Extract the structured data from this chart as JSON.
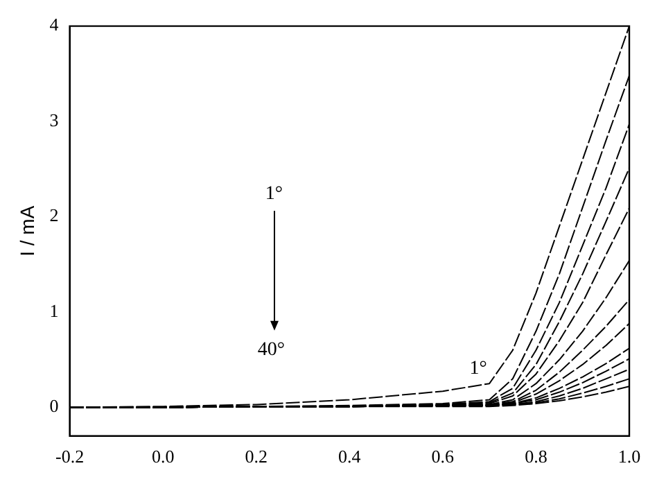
{
  "chart_data": {
    "type": "line",
    "ylabel": "I / mA",
    "x": [
      -0.2,
      0,
      0.2,
      0.4,
      0.6,
      0.7,
      0.75,
      0.8,
      0.85,
      0.9,
      0.95,
      1.0
    ],
    "series": [
      {
        "color": "#000000",
        "values": [
          0,
          0.01,
          0.03,
          0.08,
          0.17,
          0.25,
          0.6,
          1.2,
          1.9,
          2.6,
          3.3,
          4.0
        ]
      },
      {
        "color": "#000000",
        "values": [
          0,
          0,
          0.01,
          0.02,
          0.04,
          0.08,
          0.3,
          0.8,
          1.4,
          2.1,
          2.8,
          3.48
        ]
      },
      {
        "color": "#000000",
        "values": [
          0,
          0,
          0.01,
          0.01,
          0.03,
          0.06,
          0.2,
          0.6,
          1.1,
          1.7,
          2.3,
          2.97
        ]
      },
      {
        "color": "#000000",
        "values": [
          0,
          0,
          0.01,
          0.01,
          0.03,
          0.05,
          0.15,
          0.45,
          0.9,
          1.4,
          1.95,
          2.51
        ]
      },
      {
        "color": "#000000",
        "values": [
          0,
          0,
          0.01,
          0.01,
          0.03,
          0.04,
          0.12,
          0.35,
          0.7,
          1.1,
          1.6,
          2.09
        ]
      },
      {
        "color": "#000000",
        "values": [
          0,
          0,
          0.01,
          0.01,
          0.02,
          0.03,
          0.08,
          0.25,
          0.5,
          0.8,
          1.15,
          1.54
        ]
      },
      {
        "color": "#000000",
        "values": [
          0,
          0,
          0.01,
          0.01,
          0.02,
          0.03,
          0.06,
          0.18,
          0.37,
          0.6,
          0.85,
          1.13
        ]
      },
      {
        "color": "#000000",
        "values": [
          0,
          0,
          0.01,
          0.01,
          0.02,
          0.02,
          0.05,
          0.14,
          0.28,
          0.45,
          0.65,
          0.88
        ]
      },
      {
        "color": "#000000",
        "values": [
          0,
          0,
          0.01,
          0.01,
          0.02,
          0.02,
          0.04,
          0.1,
          0.2,
          0.32,
          0.46,
          0.62
        ]
      },
      {
        "color": "#000000",
        "values": [
          0,
          0,
          0.01,
          0.01,
          0.02,
          0.02,
          0.04,
          0.08,
          0.16,
          0.26,
          0.38,
          0.51
        ]
      },
      {
        "color": "#000000",
        "values": [
          0,
          0,
          0.01,
          0.01,
          0.02,
          0.02,
          0.03,
          0.06,
          0.12,
          0.2,
          0.3,
          0.4
        ]
      },
      {
        "color": "#000000",
        "values": [
          0,
          0,
          0.01,
          0.01,
          0.02,
          0.02,
          0.03,
          0.05,
          0.09,
          0.15,
          0.22,
          0.3
        ]
      },
      {
        "color": "#000000",
        "values": [
          0,
          0,
          0.01,
          0.01,
          0.01,
          0.01,
          0.02,
          0.04,
          0.07,
          0.11,
          0.16,
          0.22
        ]
      }
    ],
    "xlim": [
      -0.2,
      1.0
    ],
    "xticks": [
      {
        "value": -0.2,
        "label": "-0.2"
      },
      {
        "value": 0,
        "label": "0.0"
      },
      {
        "value": 0.2,
        "label": "0.2"
      },
      {
        "value": 0.4,
        "label": "0.4"
      },
      {
        "value": 0.6,
        "label": "0.6"
      },
      {
        "value": 0.8,
        "label": "0.8"
      },
      {
        "value": 1.0,
        "label": "1.0"
      }
    ],
    "ylim": [
      -0.3,
      4
    ],
    "yticks": [
      0,
      1,
      2,
      3,
      4
    ],
    "grid": false,
    "legend": false,
    "marker": "none",
    "line_style": "dashed",
    "annotations": [
      "1°",
      "40°",
      "1°"
    ]
  }
}
